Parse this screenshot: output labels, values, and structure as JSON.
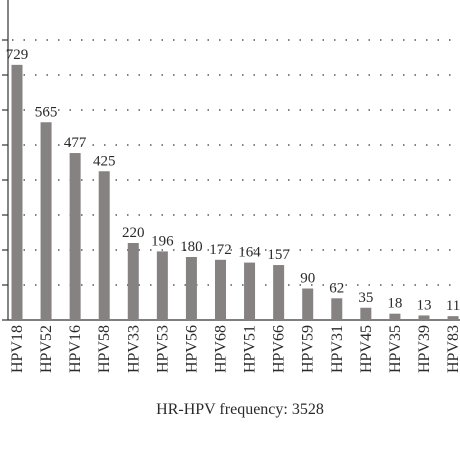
{
  "chart_data": {
    "type": "bar",
    "x_label": "HR-HPV frequency: 3528",
    "categories": [
      "HPV18",
      "HPV52",
      "HPV16",
      "HPV58",
      "HPV33",
      "HPV53",
      "HPV56",
      "HPV68",
      "HPV51",
      "HPV66",
      "HPV59",
      "HPV31",
      "HPV45",
      "HPV35",
      "HPV39",
      "HPV83"
    ],
    "values": [
      729,
      565,
      477,
      425,
      220,
      196,
      180,
      172,
      164,
      157,
      90,
      62,
      35,
      18,
      13,
      11
    ],
    "color": "#868282",
    "ylim": [
      0,
      800
    ],
    "yticks": [
      0,
      100,
      200,
      300,
      400,
      500,
      600,
      700,
      800
    ],
    "grid": true
  }
}
